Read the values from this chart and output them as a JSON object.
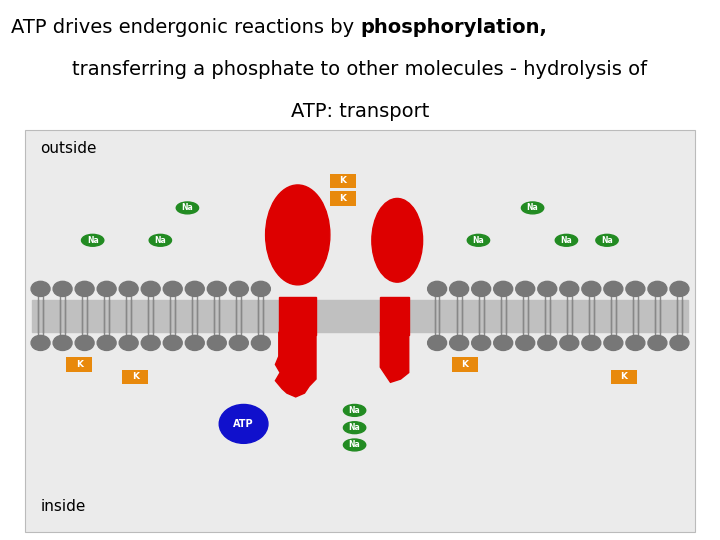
{
  "bg_color": "#ebebeb",
  "membrane_color": "#888888",
  "head_color": "#777777",
  "protein_color": "#dd0000",
  "na_color": "#228B22",
  "k_color": "#E8890C",
  "atp_color": "#1010cc",
  "white": "#ffffff",
  "black": "#000000",
  "title_line1_normal": "ATP drives endergonic reactions by ",
  "title_line1_bold": "phosphorylation,",
  "title_line2": "transferring a phosphate to other molecules - hydrolysis of",
  "title_line3": "ATP: transport",
  "outside_label": "outside",
  "inside_label": "inside",
  "figw": 7.2,
  "figh": 5.4
}
